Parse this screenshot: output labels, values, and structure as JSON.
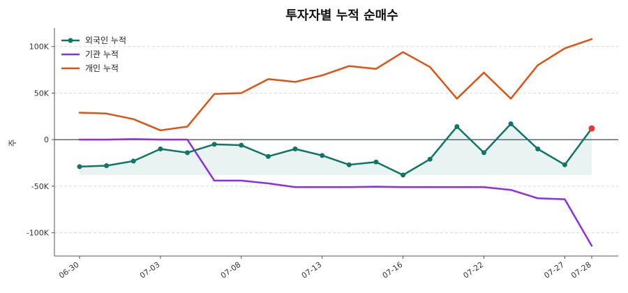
{
  "chart_data": {
    "type": "line",
    "title": "투자자별 누적 순매수",
    "ylabel": "주",
    "xlabel": "",
    "ylim": [
      -125000,
      120000
    ],
    "yticks": [
      100000,
      50000,
      0,
      -50000,
      -100000
    ],
    "ytick_labels": [
      "100K",
      "50K",
      "0",
      "-50K",
      "-100K"
    ],
    "x_tick_indices": [
      0,
      3,
      6,
      9,
      12,
      15,
      18,
      19
    ],
    "x_tick_labels": [
      "06-30",
      "07-03",
      "07-08",
      "07-13",
      "07-16",
      "07-22",
      "07-27",
      "07-28"
    ],
    "x_count": 20,
    "grid": "horizontal dashed",
    "legend_position": "top-left",
    "zero_line": true,
    "series": [
      {
        "name": "외국인 누적",
        "color": "#0f7566",
        "markers": true,
        "fill_to_min": true,
        "last_point_color": "#e53935",
        "values": [
          -29000,
          -28000,
          -23000,
          -10000,
          -14000,
          -5000,
          -6000,
          -18000,
          -10000,
          -17000,
          -27000,
          -24000,
          -38000,
          -21000,
          14000,
          -14000,
          17000,
          -10000,
          -27000,
          12000
        ]
      },
      {
        "name": "기관 누적",
        "color": "#8e2de2",
        "markers": false,
        "values": [
          0,
          0,
          600,
          0,
          0,
          -44000,
          -44000,
          -47000,
          -51000,
          -51000,
          -51000,
          -50500,
          -51000,
          -51000,
          -51000,
          -51000,
          -54000,
          -63000,
          -64000,
          -114000
        ]
      },
      {
        "name": "개인 누적",
        "color": "#e2520f",
        "markers": false,
        "values": [
          29000,
          28000,
          22000,
          10000,
          14000,
          49000,
          50000,
          65000,
          62000,
          69000,
          79000,
          76000,
          94000,
          78000,
          44000,
          72000,
          44000,
          80000,
          98000,
          108000
        ]
      }
    ]
  }
}
